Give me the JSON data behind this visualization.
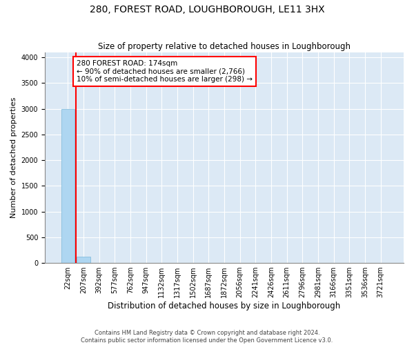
{
  "title": "280, FOREST ROAD, LOUGHBOROUGH, LE11 3HX",
  "subtitle": "Size of property relative to detached houses in Loughborough",
  "xlabel": "Distribution of detached houses by size in Loughborough",
  "ylabel": "Number of detached properties",
  "footnote1": "Contains HM Land Registry data © Crown copyright and database right 2024.",
  "footnote2": "Contains public sector information licensed under the Open Government Licence v3.0.",
  "categories": [
    "22sqm",
    "207sqm",
    "392sqm",
    "577sqm",
    "762sqm",
    "947sqm",
    "1132sqm",
    "1317sqm",
    "1502sqm",
    "1687sqm",
    "1872sqm",
    "2056sqm",
    "2241sqm",
    "2426sqm",
    "2611sqm",
    "2796sqm",
    "2981sqm",
    "3166sqm",
    "3351sqm",
    "3536sqm",
    "3721sqm"
  ],
  "values": [
    3000,
    120,
    5,
    2,
    1,
    0,
    0,
    0,
    0,
    0,
    0,
    0,
    0,
    0,
    0,
    0,
    0,
    0,
    0,
    0,
    0
  ],
  "bar_color": "#aed6f1",
  "bar_edgecolor": "#7ab8d9",
  "annotation_text_line1": "280 FOREST ROAD: 174sqm",
  "annotation_text_line2": "← 90% of detached houses are smaller (2,766)",
  "annotation_text_line3": "10% of semi-detached houses are larger (298) →",
  "annotation_box_color": "red",
  "vline_color": "red",
  "ylim": [
    0,
    4100
  ],
  "yticks": [
    0,
    500,
    1000,
    1500,
    2000,
    2500,
    3000,
    3500,
    4000
  ],
  "grid_color": "#ffffff",
  "background_color": "#dce9f5",
  "title_fontsize": 10,
  "subtitle_fontsize": 8.5,
  "ylabel_fontsize": 8,
  "xlabel_fontsize": 8.5,
  "tick_fontsize": 7,
  "annot_fontsize": 7.5,
  "footnote_fontsize": 6
}
